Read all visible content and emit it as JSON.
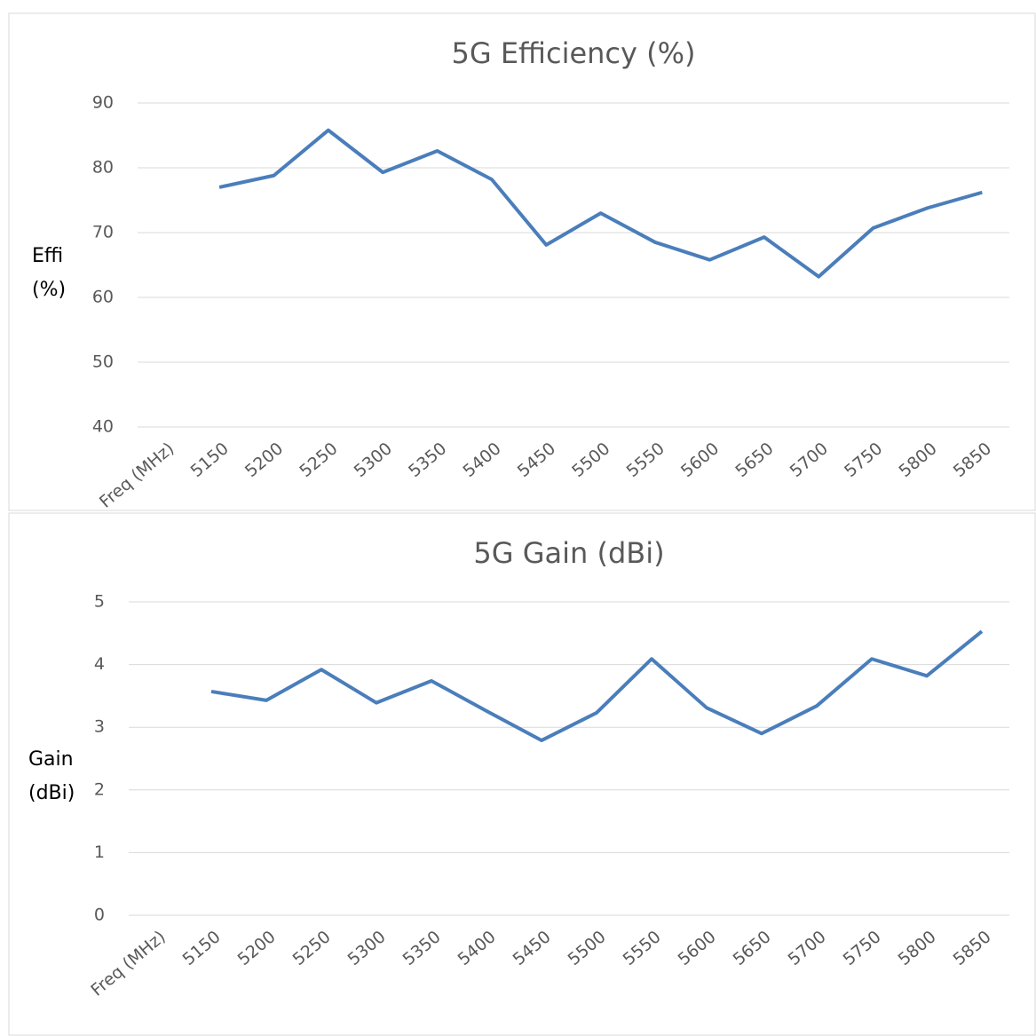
{
  "chart_data": [
    {
      "type": "line",
      "title": "5G Efficiency (%)",
      "y_label": [
        "Effi",
        "(%)"
      ],
      "categories": [
        "Freq (MHz)",
        "5150",
        "5200",
        "5250",
        "5300",
        "5350",
        "5400",
        "5450",
        "5500",
        "5550",
        "5600",
        "5650",
        "5700",
        "5750",
        "5800",
        "5850"
      ],
      "series": [
        {
          "name": "Effi",
          "color": "#4a7ebb",
          "values": [
            null,
            77.0,
            78.8,
            85.8,
            79.3,
            82.6,
            78.2,
            68.1,
            73.0,
            68.5,
            65.8,
            69.3,
            63.2,
            70.7,
            73.8,
            76.2
          ]
        }
      ],
      "ylim": [
        40,
        90
      ],
      "yticks": [
        40,
        50,
        60,
        70,
        80,
        90
      ],
      "grid": true
    },
    {
      "type": "line",
      "title": "5G Gain (dBi)",
      "y_label": [
        "Gain",
        "(dBi)"
      ],
      "categories": [
        "Freq (MHz)",
        "5150",
        "5200",
        "5250",
        "5300",
        "5350",
        "5400",
        "5450",
        "5500",
        "5550",
        "5600",
        "5650",
        "5700",
        "5750",
        "5800",
        "5850"
      ],
      "series": [
        {
          "name": "Gain",
          "color": "#4a7ebb",
          "values": [
            null,
            3.57,
            3.43,
            3.92,
            3.39,
            3.74,
            3.26,
            2.79,
            3.23,
            4.09,
            3.31,
            2.9,
            3.34,
            4.09,
            3.82,
            4.53
          ]
        }
      ],
      "ylim": [
        0,
        5
      ],
      "yticks": [
        0,
        1,
        2,
        3,
        4,
        5
      ],
      "grid": true
    }
  ]
}
